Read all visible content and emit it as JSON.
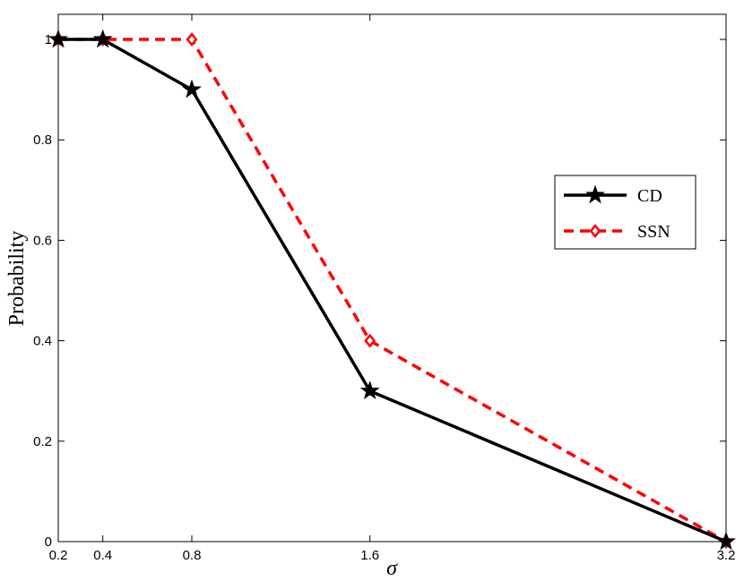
{
  "chart_data": {
    "type": "line",
    "x": [
      0.2,
      0.4,
      0.8,
      1.6,
      3.2
    ],
    "xtick_labels": [
      "0.2",
      "0.4",
      "0.8",
      "1.6",
      "3.2"
    ],
    "yticks": [
      0,
      0.2,
      0.4,
      0.6,
      0.8,
      1
    ],
    "ytick_labels": [
      "0",
      "0.2",
      "0.4",
      "0.6",
      "0.8",
      "1"
    ],
    "xlabel": "σ",
    "ylabel": "Probability",
    "xlim": [
      0.2,
      3.2
    ],
    "ylim": [
      0,
      1.05
    ],
    "grid": false,
    "legend_position": "right",
    "series": [
      {
        "name": "CD",
        "values": [
          1,
          1,
          0.9,
          0.3,
          0
        ],
        "color": "#000000",
        "dash": "solid",
        "marker": "star"
      },
      {
        "name": "SSN",
        "values": [
          1,
          1,
          1,
          0.4,
          0
        ],
        "color": "#ff0000",
        "dash": "dashed",
        "marker": "diamond"
      }
    ]
  }
}
